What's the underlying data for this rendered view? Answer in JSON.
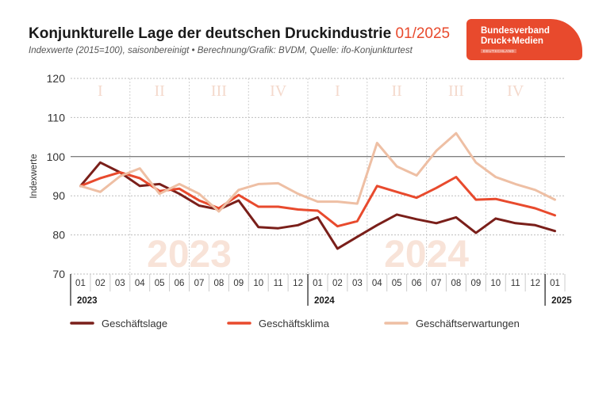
{
  "header": {
    "title": "Konjunkturelle Lage der deutschen Druckindustrie",
    "title_accent": "01/2025",
    "subtitle": "Indexwerte (2015=100), saisonbereinigt • Berechnung/Grafik: BVDM, Quelle: ifo-Konjunkturtest"
  },
  "logo": {
    "line1": "Bundesverband",
    "line2": "Druck+Medien",
    "line3": "DEUTSCHLAND",
    "color": "#e84a2d"
  },
  "chart_data": {
    "type": "line",
    "title": "Konjunkturelle Lage der deutschen Druckindustrie 01/2025",
    "ylabel": "Indexwerte",
    "ylim": [
      70,
      120
    ],
    "yticks": [
      70,
      80,
      90,
      100,
      110,
      120
    ],
    "reference_line": 100,
    "months": [
      "01",
      "02",
      "03",
      "04",
      "05",
      "06",
      "07",
      "08",
      "09",
      "10",
      "11",
      "12",
      "01",
      "02",
      "03",
      "04",
      "05",
      "06",
      "07",
      "08",
      "09",
      "10",
      "11",
      "12",
      "01"
    ],
    "years": [
      {
        "label": "2023",
        "start_index": 0
      },
      {
        "label": "2024",
        "start_index": 12
      },
      {
        "label": "2025",
        "start_index": 24
      }
    ],
    "quarters": [
      "I",
      "II",
      "III",
      "IV",
      "I",
      "II",
      "III",
      "IV"
    ],
    "background_years": [
      "2023",
      "2024"
    ],
    "grid": true,
    "legend_position": "bottom",
    "series": [
      {
        "name": "Geschäftslage",
        "color": "#7a1f1a",
        "values": [
          92.5,
          98.5,
          96.0,
          92.5,
          93.0,
          90.5,
          87.5,
          86.5,
          88.8,
          82.0,
          81.7,
          82.5,
          84.5,
          76.5,
          79.5,
          82.5,
          85.2,
          84.0,
          83.0,
          84.5,
          80.5,
          84.2,
          83.0,
          82.5,
          81.0
        ]
      },
      {
        "name": "Geschäftsklima",
        "color": "#e84a2d",
        "values": [
          92.5,
          94.5,
          96.0,
          94.5,
          91.2,
          91.8,
          88.8,
          86.8,
          90.2,
          87.2,
          87.2,
          86.5,
          86.2,
          82.2,
          83.5,
          92.5,
          91.0,
          89.5,
          92.0,
          94.8,
          89.0,
          89.2,
          88.0,
          86.8,
          85.0
        ]
      },
      {
        "name": "Geschäftserwartungen",
        "color": "#eebfa4",
        "values": [
          92.5,
          91.0,
          95.0,
          97.0,
          90.5,
          93.0,
          90.5,
          86.0,
          91.5,
          93.0,
          93.2,
          90.5,
          88.5,
          88.5,
          88.0,
          103.5,
          97.5,
          95.2,
          101.5,
          106.0,
          98.5,
          94.8,
          93.0,
          91.5,
          89.0
        ]
      }
    ]
  }
}
